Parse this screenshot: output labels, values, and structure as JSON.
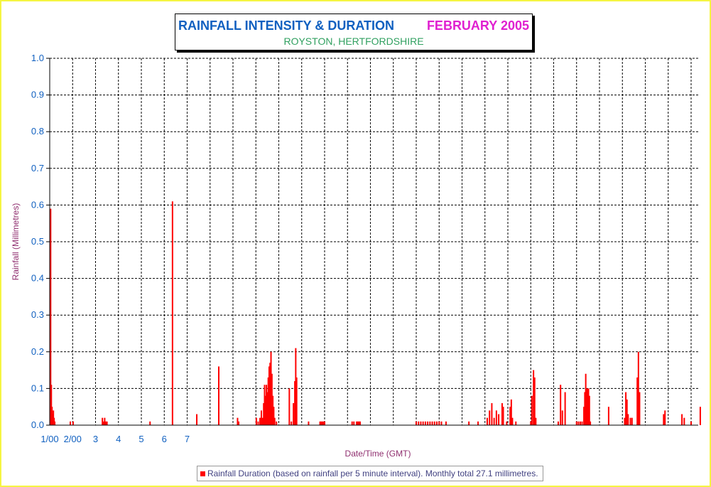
{
  "chart_data": {
    "type": "bar",
    "title_left": "RAINFALL INTENSITY & DURATION",
    "title_right": "FEBRUARY 2005",
    "subtitle": "ROYSTON, HERTFORDSHIRE",
    "xlabel": "Date/Time (GMT)",
    "ylabel": "Rainfall (Millimetres)",
    "ylim": [
      0,
      1.0
    ],
    "yticks": [
      "0.0",
      "0.1",
      "0.2",
      "0.3",
      "0.4",
      "0.5",
      "0.6",
      "0.7",
      "0.8",
      "0.9",
      "1.0"
    ],
    "xlim_days": [
      1,
      29
    ],
    "xtick_labels": [
      "1/00",
      "2/00",
      "3",
      "4",
      "5",
      "6",
      "7"
    ],
    "grid": true,
    "legend": "Rainfall Duration (based on rainfall per 5 minute interval). Monthly total 27.1 millimetres.",
    "legend_position": "bottom",
    "series": [
      {
        "color": "#ff0000",
        "points": [
          [
            1.04,
            0.59
          ],
          [
            1.07,
            0.11
          ],
          [
            1.1,
            0.05
          ],
          [
            1.13,
            0.03
          ],
          [
            1.16,
            0.04
          ],
          [
            1.19,
            0.02
          ],
          [
            1.22,
            0.01
          ],
          [
            1.9,
            0.01
          ],
          [
            2.02,
            0.01
          ],
          [
            3.3,
            0.02
          ],
          [
            3.35,
            0.01
          ],
          [
            3.4,
            0.02
          ],
          [
            3.45,
            0.01
          ],
          [
            3.5,
            0.01
          ],
          [
            5.38,
            0.01
          ],
          [
            6.36,
            0.61
          ],
          [
            7.42,
            0.03
          ],
          [
            8.38,
            0.16
          ],
          [
            9.2,
            0.02
          ],
          [
            9.25,
            0.01
          ],
          [
            10.02,
            0.02
          ],
          [
            10.1,
            0.01
          ],
          [
            10.18,
            0.02
          ],
          [
            10.24,
            0.04
          ],
          [
            10.3,
            0.02
          ],
          [
            10.34,
            0.06
          ],
          [
            10.38,
            0.11
          ],
          [
            10.42,
            0.08
          ],
          [
            10.46,
            0.11
          ],
          [
            10.5,
            0.09
          ],
          [
            10.54,
            0.13
          ],
          [
            10.58,
            0.16
          ],
          [
            10.62,
            0.17
          ],
          [
            10.66,
            0.2
          ],
          [
            10.7,
            0.14
          ],
          [
            10.74,
            0.08
          ],
          [
            10.78,
            0.05
          ],
          [
            10.82,
            0.02
          ],
          [
            10.9,
            0.01
          ],
          [
            11.46,
            0.1
          ],
          [
            11.55,
            0.01
          ],
          [
            11.64,
            0.06
          ],
          [
            11.7,
            0.12
          ],
          [
            11.74,
            0.21
          ],
          [
            11.78,
            0.13
          ],
          [
            12.3,
            0.01
          ],
          [
            12.8,
            0.01
          ],
          [
            12.85,
            0.01
          ],
          [
            12.9,
            0.01
          ],
          [
            12.95,
            0.01
          ],
          [
            13.0,
            0.01
          ],
          [
            14.2,
            0.01
          ],
          [
            14.28,
            0.01
          ],
          [
            14.4,
            0.01
          ],
          [
            14.45,
            0.01
          ],
          [
            14.5,
            0.01
          ],
          [
            14.55,
            0.01
          ],
          [
            17.0,
            0.01
          ],
          [
            17.1,
            0.01
          ],
          [
            17.2,
            0.01
          ],
          [
            17.3,
            0.01
          ],
          [
            17.4,
            0.01
          ],
          [
            17.5,
            0.01
          ],
          [
            17.6,
            0.01
          ],
          [
            17.7,
            0.01
          ],
          [
            17.8,
            0.01
          ],
          [
            17.9,
            0.01
          ],
          [
            18.0,
            0.01
          ],
          [
            18.1,
            0.01
          ],
          [
            18.3,
            0.01
          ],
          [
            19.3,
            0.01
          ],
          [
            19.7,
            0.01
          ],
          [
            20.1,
            0.02
          ],
          [
            20.2,
            0.04
          ],
          [
            20.3,
            0.06
          ],
          [
            20.4,
            0.02
          ],
          [
            20.5,
            0.04
          ],
          [
            20.6,
            0.03
          ],
          [
            20.75,
            0.06
          ],
          [
            20.8,
            0.05
          ],
          [
            20.95,
            0.01
          ],
          [
            21.1,
            0.05
          ],
          [
            21.15,
            0.07
          ],
          [
            21.2,
            0.02
          ],
          [
            21.35,
            0.01
          ],
          [
            22.0,
            0.01
          ],
          [
            22.05,
            0.08
          ],
          [
            22.12,
            0.15
          ],
          [
            22.17,
            0.13
          ],
          [
            22.22,
            0.02
          ],
          [
            23.2,
            0.01
          ],
          [
            23.3,
            0.11
          ],
          [
            23.38,
            0.04
          ],
          [
            23.5,
            0.09
          ],
          [
            24.0,
            0.01
          ],
          [
            24.08,
            0.01
          ],
          [
            24.16,
            0.01
          ],
          [
            24.24,
            0.01
          ],
          [
            24.32,
            0.05
          ],
          [
            24.36,
            0.09
          ],
          [
            24.4,
            0.14
          ],
          [
            24.44,
            0.1
          ],
          [
            24.48,
            0.1
          ],
          [
            24.52,
            0.1
          ],
          [
            24.56,
            0.08
          ],
          [
            24.6,
            0.01
          ],
          [
            25.4,
            0.05
          ],
          [
            26.1,
            0.02
          ],
          [
            26.15,
            0.09
          ],
          [
            26.2,
            0.07
          ],
          [
            26.25,
            0.03
          ],
          [
            26.35,
            0.02
          ],
          [
            26.42,
            0.02
          ],
          [
            26.65,
            0.13
          ],
          [
            26.7,
            0.2
          ],
          [
            26.75,
            0.09
          ],
          [
            27.8,
            0.03
          ],
          [
            27.86,
            0.04
          ],
          [
            28.6,
            0.03
          ],
          [
            28.7,
            0.02
          ],
          [
            29.0,
            0.01
          ],
          [
            29.4,
            0.05
          ]
        ]
      }
    ]
  }
}
